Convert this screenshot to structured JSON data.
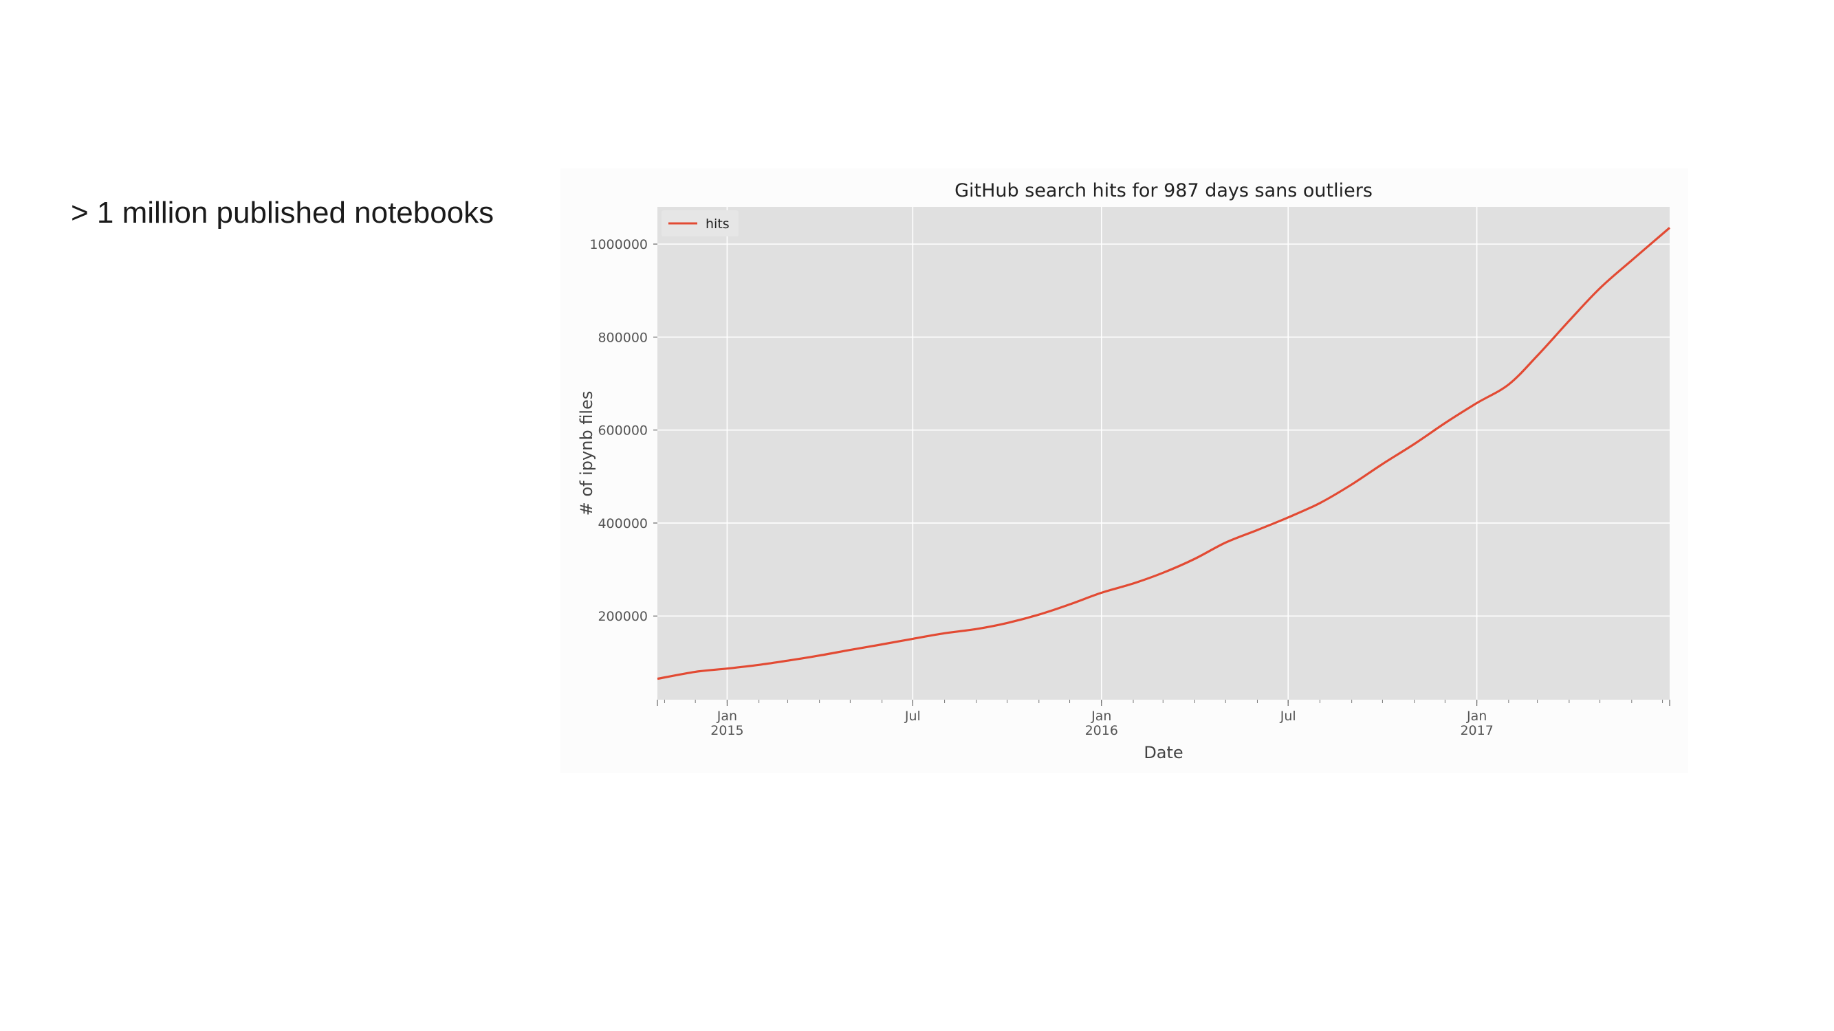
{
  "slide": {
    "text": "> 1 million published notebooks"
  },
  "chart_data": {
    "type": "line",
    "title": "GitHub search hits for 987 days sans outliers",
    "xlabel": "Date",
    "ylabel": "# of ipynb files",
    "xlim": [
      "2014-10-25",
      "2017-07-08"
    ],
    "ylim": [
      20000,
      1080000
    ],
    "y_ticks": [
      200000,
      400000,
      600000,
      800000,
      1000000
    ],
    "x_major_ticks": [
      {
        "date": "2015-01-01",
        "label": "Jan",
        "sublabel": "2015"
      },
      {
        "date": "2015-07-01",
        "label": "Jul",
        "sublabel": ""
      },
      {
        "date": "2016-01-01",
        "label": "Jan",
        "sublabel": "2016"
      },
      {
        "date": "2016-07-01",
        "label": "Jul",
        "sublabel": ""
      },
      {
        "date": "2017-01-01",
        "label": "Jan",
        "sublabel": "2017"
      }
    ],
    "grid": true,
    "legend_position": "top-left",
    "background": "#e0e0e0",
    "series": [
      {
        "name": "hits",
        "color": "#e24a33",
        "x": [
          "2014-10-25",
          "2014-12-01",
          "2015-01-01",
          "2015-02-01",
          "2015-03-01",
          "2015-04-01",
          "2015-05-01",
          "2015-06-01",
          "2015-07-01",
          "2015-08-01",
          "2015-09-01",
          "2015-10-01",
          "2015-11-01",
          "2015-12-01",
          "2016-01-01",
          "2016-02-01",
          "2016-03-01",
          "2016-04-01",
          "2016-05-01",
          "2016-06-01",
          "2016-07-01",
          "2016-08-01",
          "2016-09-01",
          "2016-10-01",
          "2016-11-01",
          "2016-12-01",
          "2017-01-01",
          "2017-02-01",
          "2017-03-01",
          "2017-04-01",
          "2017-05-01",
          "2017-06-01",
          "2017-07-08"
        ],
        "values": [
          65000,
          80000,
          87000,
          95000,
          104000,
          115000,
          127000,
          139000,
          151000,
          163000,
          172000,
          185000,
          203000,
          225000,
          250000,
          270000,
          293000,
          323000,
          358000,
          385000,
          412000,
          443000,
          483000,
          527000,
          570000,
          615000,
          658000,
          698000,
          760000,
          835000,
          905000,
          965000,
          1035000
        ]
      }
    ]
  }
}
